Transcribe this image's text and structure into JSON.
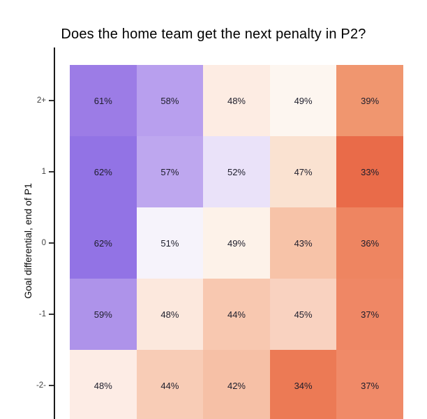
{
  "chart_data": {
    "type": "heatmap",
    "title": "Does the home team get the next penalty in P2?",
    "xlabel": "",
    "ylabel": "Goal differential, end of P1",
    "y_categories": [
      "2+",
      "1",
      "0",
      "-1",
      "-2-"
    ],
    "value_format": "percent",
    "legend": "none",
    "grid": "off",
    "colorscale": {
      "low_color": "#e9694a",
      "mid_color": "#ffffff",
      "high_color": "#9273e5",
      "midpoint_value": 50
    },
    "axis_color": "#1a1a1a",
    "values": [
      [
        61,
        58,
        48,
        49,
        39
      ],
      [
        62,
        57,
        52,
        47,
        33
      ],
      [
        62,
        51,
        49,
        43,
        36
      ],
      [
        59,
        48,
        44,
        45,
        37
      ],
      [
        48,
        44,
        42,
        34,
        37
      ]
    ],
    "rows": [
      {
        "tick": "2+",
        "cells": [
          {
            "label": "61%",
            "color": "#9c7ce6"
          },
          {
            "label": "58%",
            "color": "#b89fee"
          },
          {
            "label": "48%",
            "color": "#fdece3"
          },
          {
            "label": "49%",
            "color": "#fdf6f0"
          },
          {
            "label": "39%",
            "color": "#f0966f"
          }
        ]
      },
      {
        "tick": "1",
        "cells": [
          {
            "label": "62%",
            "color": "#9273e5"
          },
          {
            "label": "57%",
            "color": "#bea7ef"
          },
          {
            "label": "52%",
            "color": "#eae2f9"
          },
          {
            "label": "47%",
            "color": "#fae2d1"
          },
          {
            "label": "33%",
            "color": "#e96b49"
          }
        ]
      },
      {
        "tick": "0",
        "cells": [
          {
            "label": "62%",
            "color": "#9273e5"
          },
          {
            "label": "51%",
            "color": "#f6f3fb"
          },
          {
            "label": "49%",
            "color": "#fdf2e9"
          },
          {
            "label": "43%",
            "color": "#f7c3a8"
          },
          {
            "label": "36%",
            "color": "#ee8561"
          }
        ]
      },
      {
        "tick": "-1",
        "cells": [
          {
            "label": "59%",
            "color": "#ae93ea"
          },
          {
            "label": "48%",
            "color": "#fce8dd"
          },
          {
            "label": "44%",
            "color": "#f8c8b0"
          },
          {
            "label": "45%",
            "color": "#f9d2c0"
          },
          {
            "label": "37%",
            "color": "#ef8765"
          }
        ]
      },
      {
        "tick": "-2-",
        "cells": [
          {
            "label": "48%",
            "color": "#fdece5"
          },
          {
            "label": "44%",
            "color": "#f8ccb6"
          },
          {
            "label": "42%",
            "color": "#f6c0a6"
          },
          {
            "label": "34%",
            "color": "#ec7a55"
          },
          {
            "label": "37%",
            "color": "#f08a68"
          }
        ]
      }
    ]
  }
}
